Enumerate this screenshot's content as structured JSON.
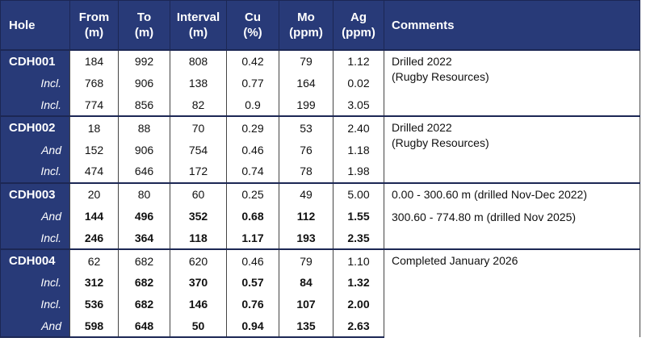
{
  "table": {
    "header": [
      [
        "Hole"
      ],
      [
        "From",
        "(m)"
      ],
      [
        "To",
        "(m)"
      ],
      [
        "Interval",
        "(m)"
      ],
      [
        "Cu",
        "(%)"
      ],
      [
        "Mo",
        "(ppm)"
      ],
      [
        "Ag",
        "(ppm)"
      ],
      [
        "Comments"
      ]
    ],
    "groups": [
      {
        "rows": [
          {
            "hole": "CDH001",
            "values": [
              "184",
              "992",
              "808",
              "0.42",
              "79",
              "1.12"
            ]
          },
          {
            "hole": "Incl.",
            "values": [
              "768",
              "906",
              "138",
              "0.77",
              "164",
              "0.02"
            ]
          },
          {
            "hole": "Incl.",
            "values": [
              "774",
              "856",
              "82",
              "0.9",
              "199",
              "3.05"
            ]
          }
        ],
        "comments": [
          [
            "Drilled 2022",
            "(Rugby Resources)"
          ]
        ]
      },
      {
        "rows": [
          {
            "hole": "CDH002",
            "values": [
              "18",
              "88",
              "70",
              "0.29",
              "53",
              "2.40"
            ]
          },
          {
            "hole": "And",
            "values": [
              "152",
              "906",
              "754",
              "0.46",
              "76",
              "1.18"
            ]
          },
          {
            "hole": "Incl.",
            "values": [
              "474",
              "646",
              "172",
              "0.74",
              "78",
              "1.98"
            ]
          }
        ],
        "comments": [
          [
            "Drilled 2022",
            "(Rugby Resources)"
          ]
        ]
      },
      {
        "rows": [
          {
            "hole": "CDH003",
            "values": [
              "20",
              "80",
              "60",
              "0.25",
              "49",
              "5.00"
            ]
          },
          {
            "hole": "And",
            "values": [
              "144",
              "496",
              "352",
              "0.68",
              "112",
              "1.55"
            ],
            "bold": true
          },
          {
            "hole": "Incl.",
            "values": [
              "246",
              "364",
              "118",
              "1.17",
              "193",
              "2.35"
            ],
            "bold": true
          }
        ],
        "comments": [
          [
            "0.00 - 300.60 m (drilled Nov-Dec 2022)"
          ],
          [
            "300.60 - 774.80 m (drilled Nov 2025)"
          ]
        ]
      },
      {
        "rows": [
          {
            "hole": "CDH004",
            "values": [
              "62",
              "682",
              "620",
              "0.46",
              "79",
              "1.10"
            ]
          },
          {
            "hole": "Incl.",
            "values": [
              "312",
              "682",
              "370",
              "0.57",
              "84",
              "1.32"
            ],
            "bold": true
          },
          {
            "hole": "Incl.",
            "values": [
              "536",
              "682",
              "146",
              "0.76",
              "107",
              "2.00"
            ],
            "bold": true
          },
          {
            "hole": "And",
            "values": [
              "598",
              "648",
              "50",
              "0.94",
              "135",
              "2.63"
            ],
            "bold": true
          }
        ],
        "comments": [
          [
            "Completed January 2026"
          ]
        ]
      }
    ]
  }
}
